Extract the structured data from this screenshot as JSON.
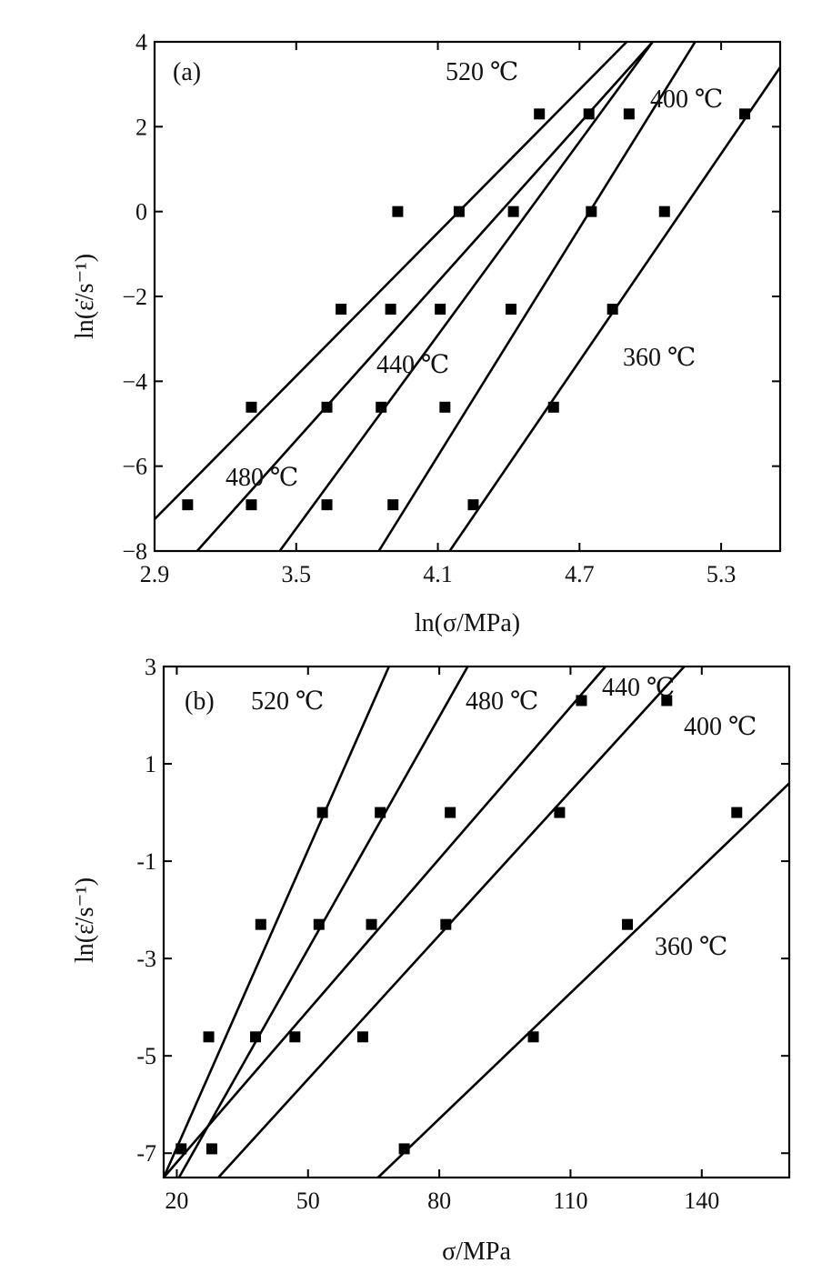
{
  "chart_data": [
    {
      "type": "scatter",
      "panel_label": "(a)",
      "xlabel": "ln(σ/MPa)",
      "ylabel": "ln(ε̇/s⁻¹)",
      "xlim": [
        2.9,
        5.55
      ],
      "ylim": [
        -8,
        4
      ],
      "xticks": [
        "2.9",
        "3.5",
        "4.1",
        "4.7",
        "5.3"
      ],
      "yticks": [
        "4",
        "2",
        "0",
        "−2",
        "−4",
        "−6",
        "−8"
      ],
      "grid": false,
      "series": [
        {
          "name": "520 ℃",
          "points": [
            [
              3.04,
              -6.91
            ],
            [
              3.31,
              -4.61
            ],
            [
              3.69,
              -2.3
            ],
            [
              3.93,
              0.0
            ],
            [
              4.53,
              2.3
            ]
          ],
          "fit": [
            [
              2.9,
              -7.25
            ],
            [
              4.9,
              4.0
            ]
          ]
        },
        {
          "name": "480 ℃",
          "points": [
            [
              3.31,
              -6.91
            ],
            [
              3.63,
              -4.61
            ],
            [
              3.9,
              -2.3
            ],
            [
              4.19,
              0.0
            ],
            [
              4.74,
              2.3
            ]
          ],
          "fit": [
            [
              3.08,
              -8.0
            ],
            [
              5.01,
              4.0
            ]
          ]
        },
        {
          "name": "440 ℃",
          "points": [
            [
              3.63,
              -6.91
            ],
            [
              3.86,
              -4.61
            ],
            [
              4.11,
              -2.3
            ],
            [
              4.42,
              0.0
            ],
            [
              4.91,
              2.3
            ]
          ],
          "fit": [
            [
              3.43,
              -8.0
            ],
            [
              5.01,
              4.0
            ]
          ]
        },
        {
          "name": "400 ℃",
          "points": [
            [
              3.91,
              -6.91
            ],
            [
              4.13,
              -4.61
            ],
            [
              4.41,
              -2.3
            ],
            [
              4.75,
              0.0
            ],
            [
              5.4,
              2.3
            ]
          ],
          "fit": [
            [
              3.85,
              -8.0
            ],
            [
              5.19,
              4.0
            ]
          ]
        },
        {
          "name": "360 ℃",
          "points": [
            [
              4.25,
              -6.91
            ],
            [
              4.59,
              -4.61
            ],
            [
              4.84,
              -2.3
            ],
            [
              5.06,
              0.0
            ]
          ],
          "fit": [
            [
              4.15,
              -8.0
            ],
            [
              5.55,
              3.4
            ]
          ]
        }
      ]
    },
    {
      "type": "scatter",
      "panel_label": "(b)",
      "xlabel": "σ/MPa",
      "ylabel": "ln(ε̇/s⁻¹)",
      "xlim": [
        17,
        160
      ],
      "ylim": [
        -7.5,
        3
      ],
      "xticks": [
        "20",
        "50",
        "80",
        "110",
        "140"
      ],
      "yticks": [
        "3",
        "1",
        "-1",
        "-3",
        "-5",
        "-7"
      ],
      "grid": false,
      "series": [
        {
          "name": "520 ℃",
          "points": [
            [
              21.0,
              -6.91
            ],
            [
              27.3,
              -4.61
            ],
            [
              39.2,
              -2.3
            ],
            [
              53.3,
              0.0
            ]
          ],
          "fit": [
            [
              17.0,
              -7.5
            ],
            [
              68.5,
              3.0
            ]
          ]
        },
        {
          "name": "480 ℃",
          "points": [
            [
              28.0,
              -6.91
            ],
            [
              38.0,
              -4.61
            ],
            [
              52.5,
              -2.3
            ],
            [
              66.5,
              0.0
            ],
            [
              112.5,
              2.3
            ]
          ],
          "fit": [
            [
              20.5,
              -7.5
            ],
            [
              86.5,
              3.0
            ]
          ]
        },
        {
          "name": "440 ℃",
          "points": [
            [
              47.0,
              -4.61
            ],
            [
              64.5,
              -2.3
            ],
            [
              82.5,
              0.0
            ]
          ],
          "fit": [
            [
              17.0,
              -7.5
            ],
            [
              118.0,
              3.0
            ]
          ]
        },
        {
          "name": "400 ℃",
          "points": [
            [
              62.5,
              -4.61
            ],
            [
              81.5,
              -2.3
            ],
            [
              107.5,
              0.0
            ],
            [
              132.0,
              2.3
            ]
          ],
          "fit": [
            [
              29.5,
              -7.5
            ],
            [
              136.0,
              3.0
            ]
          ]
        },
        {
          "name": "360 ℃",
          "points": [
            [
              72.0,
              -6.91
            ],
            [
              101.5,
              -4.61
            ],
            [
              123.0,
              -2.3
            ],
            [
              148.0,
              0.0
            ]
          ],
          "fit": [
            [
              66.0,
              -7.5
            ],
            [
              160.0,
              0.6
            ]
          ]
        }
      ]
    }
  ],
  "labels": {
    "a": {
      "panel": "(a)",
      "l520": "520 ℃",
      "l480": "480 ℃",
      "l440": "440 ℃",
      "l400": "400 ℃",
      "l360": "360 ℃",
      "xtitle": "ln(σ/MPa)",
      "ytitle": "ln(ε̇/s⁻¹)"
    },
    "b": {
      "panel": "(b)",
      "l520": "520 ℃",
      "l480": "480 ℃",
      "l440": "440 ℃",
      "l400": "400 ℃",
      "l360": "360 ℃",
      "xtitle": "σ/MPa",
      "ytitle": "ln(ε̇/s⁻¹)"
    }
  }
}
